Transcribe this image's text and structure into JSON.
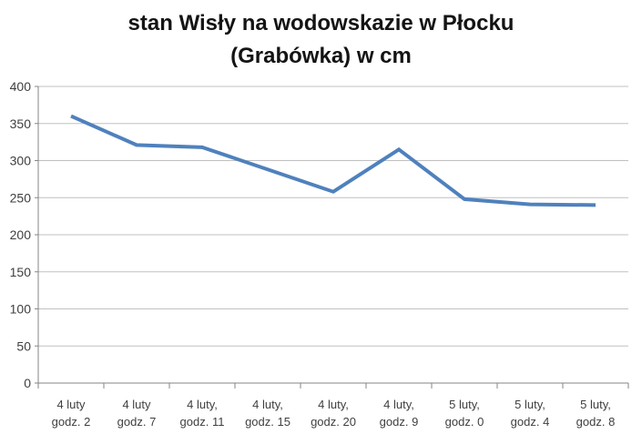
{
  "chart_data": {
    "type": "line",
    "title": "stan Wisły na wodowskazie w Płocku (Grabówka) w cm",
    "title_lines": [
      "stan Wisły na wodowskazie w Płocku",
      "(Grabówka) w cm"
    ],
    "categories": [
      [
        "4 luty",
        "godz. 2"
      ],
      [
        "4 luty",
        "godz. 7"
      ],
      [
        "4 luty,",
        "godz. 11"
      ],
      [
        "4 luty,",
        "godz. 15"
      ],
      [
        "4 luty,",
        "godz. 20"
      ],
      [
        "4 luty,",
        "godz. 9"
      ],
      [
        "5 luty,",
        "godz. 0"
      ],
      [
        "5 luty,",
        "godz. 4"
      ],
      [
        "5 luty,",
        "godz. 8"
      ]
    ],
    "values": [
      360,
      321,
      318,
      288,
      258,
      315,
      248,
      241,
      240
    ],
    "xlabel": "",
    "ylabel": "",
    "ylim": [
      0,
      400
    ],
    "ytick_step": 50,
    "yticks": [
      0,
      50,
      100,
      150,
      200,
      250,
      300,
      350,
      400
    ],
    "grid": true,
    "legend": "none",
    "colors": {
      "line": "#4F81BD",
      "gridline": "#C0C0C0",
      "axis": "#868686",
      "tick_label": "#3F3F3F",
      "title": "#141414",
      "background": "#FFFFFF"
    }
  }
}
